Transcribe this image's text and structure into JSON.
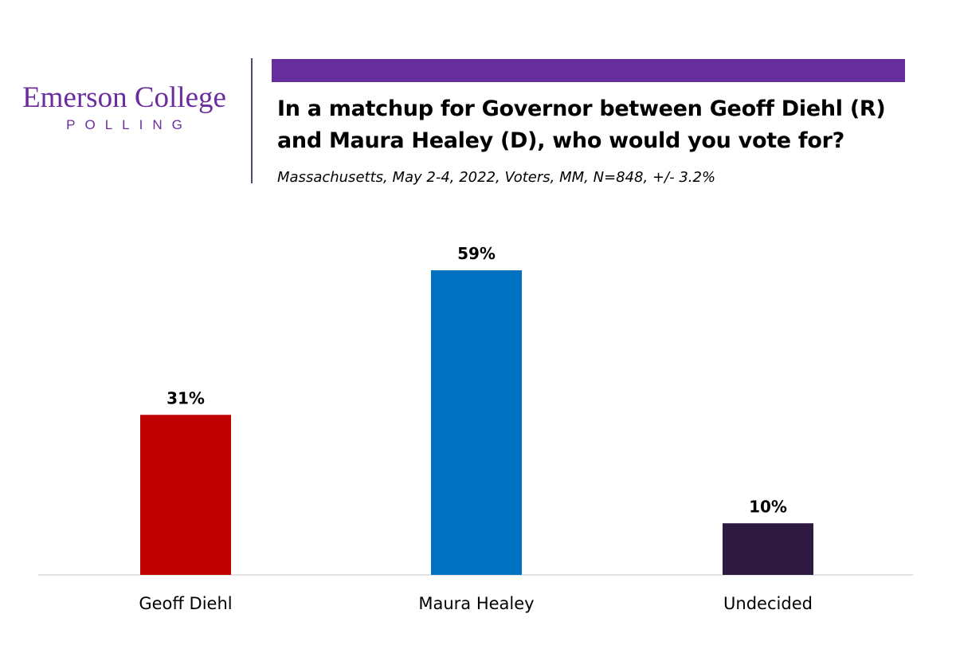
{
  "logo": {
    "name": "Emerson College",
    "sub": "POLLING"
  },
  "header": {
    "title": "In a matchup for Governor between Geoff Diehl (R) and Maura Healey (D), who would you vote for?",
    "subtitle": "Massachusetts, May 2-4, 2022, Voters, MM, N=848, +/- 3.2%"
  },
  "colors": {
    "accent": "#662d9c",
    "brand": "#6b2d9e"
  },
  "chart_data": {
    "type": "bar",
    "categories": [
      "Geoff Diehl",
      "Maura Healey",
      "Undecided"
    ],
    "values": [
      31,
      59,
      10
    ],
    "data_labels": [
      "31%",
      "59%",
      "10%"
    ],
    "colors": [
      "#c00000",
      "#0070c0",
      "#2e1a40"
    ],
    "ylim": [
      0,
      70
    ],
    "grid": false,
    "legend": "none"
  }
}
